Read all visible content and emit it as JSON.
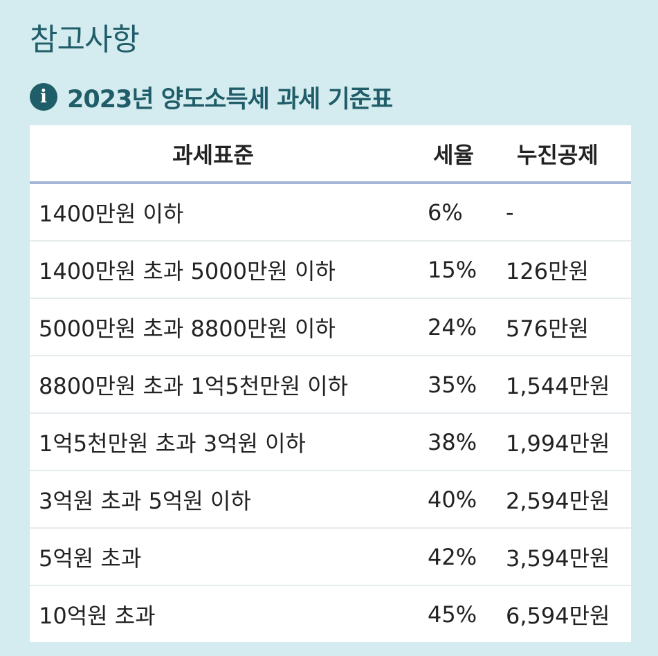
{
  "title": "참고사항",
  "subtitle": "2023년 양도소득세 과세 기준표",
  "icon": "info-icon",
  "colors": {
    "background": "#d4ebef",
    "accent": "#1f5d68",
    "header_border": "#a3b6d6",
    "table_bg": "#ffffff"
  },
  "table": {
    "headers": [
      "과세표준",
      "세율",
      "누진공제"
    ],
    "rows": [
      [
        "1400만원 이하",
        "6%",
        "-"
      ],
      [
        "1400만원 초과 5000만원 이하",
        "15%",
        "126만원"
      ],
      [
        "5000만원 초과 8800만원 이하",
        "24%",
        "576만원"
      ],
      [
        "8800만원 초과 1억5천만원 이하",
        "35%",
        "1,544만원"
      ],
      [
        "1억5천만원 초과 3억원 이하",
        "38%",
        "1,994만원"
      ],
      [
        "3억원 초과 5억원 이하",
        "40%",
        "2,594만원"
      ],
      [
        "5억원 초과",
        "42%",
        "3,594만원"
      ],
      [
        "10억원 초과",
        "45%",
        "6,594만원"
      ]
    ]
  }
}
